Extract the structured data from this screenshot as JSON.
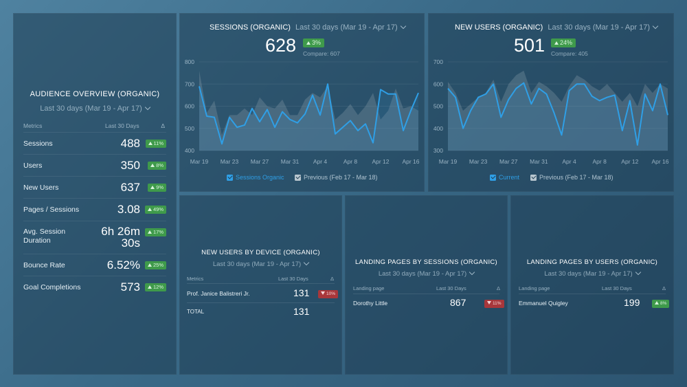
{
  "colors": {
    "series": "#2f9fe6",
    "previous": "#7d94a3",
    "positive": "#3f9a4b",
    "negative": "#a8373b"
  },
  "audience": {
    "title": "AUDIENCE OVERVIEW (ORGANIC)",
    "range": "Last 30 days (Mar 19 - Apr 17)",
    "columns": [
      "Metrics",
      "Last 30 Days",
      "Δ"
    ],
    "rows": [
      {
        "label": "Sessions",
        "value": "488",
        "delta": "11%"
      },
      {
        "label": "Users",
        "value": "350",
        "delta": "8%"
      },
      {
        "label": "New Users",
        "value": "637",
        "delta": "9%"
      },
      {
        "label": "Pages / Sessions",
        "value": "3.08",
        "delta": "49%"
      },
      {
        "label": "Avg. Session Duration",
        "value": "6h 26m 30s",
        "delta": "17%"
      },
      {
        "label": "Bounce Rate",
        "value": "6.52%",
        "delta": "25%"
      },
      {
        "label": "Goal Completions",
        "value": "573",
        "delta": "12%"
      }
    ]
  },
  "sessions": {
    "title": "SESSIONS (ORGANIC)",
    "range": "Last 30 days (Mar 19 - Apr 17)",
    "value": "628",
    "delta": "3%",
    "compare": "Compare: 607",
    "legend_current": "Sessions Organic",
    "legend_previous": "Previous (Feb 17 - Mar 18)"
  },
  "new_users": {
    "title": "NEW USERS (ORGANIC)",
    "range": "Last 30 days (Mar 19 - Apr 17)",
    "value": "501",
    "delta": "24%",
    "compare": "Compare: 405",
    "legend_current": "Current",
    "legend_previous": "Previous (Feb 17 - Mar 18)"
  },
  "chart_data": [
    {
      "type": "line",
      "x": [
        "Mar 19",
        "Mar 20",
        "Mar 21",
        "Mar 22",
        "Mar 23",
        "Mar 24",
        "Mar 25",
        "Mar 26",
        "Mar 27",
        "Mar 28",
        "Mar 29",
        "Mar 30",
        "Mar 31",
        "Apr 1",
        "Apr 2",
        "Apr 3",
        "Apr 4",
        "Apr 5",
        "Apr 6",
        "Apr 7",
        "Apr 8",
        "Apr 9",
        "Apr 10",
        "Apr 11",
        "Apr 12",
        "Apr 13",
        "Apr 14",
        "Apr 15",
        "Apr 16",
        "Apr 17"
      ],
      "xticks": [
        "Mar 19",
        "Mar 23",
        "Mar 27",
        "Mar 31",
        "Apr 4",
        "Apr 8",
        "Apr 12",
        "Apr 16"
      ],
      "yticks": [
        400,
        500,
        600,
        700,
        800
      ],
      "ylim": [
        400,
        800
      ],
      "series": [
        {
          "name": "Sessions Organic",
          "values": [
            690,
            555,
            550,
            430,
            550,
            505,
            515,
            590,
            530,
            585,
            505,
            575,
            540,
            525,
            565,
            650,
            560,
            700,
            475,
            505,
            535,
            490,
            520,
            435,
            675,
            655,
            655,
            490,
            580,
            660
          ]
        },
        {
          "name": "Previous (Feb 17 - Mar 18)",
          "values": [
            760,
            570,
            625,
            470,
            560,
            560,
            590,
            560,
            640,
            600,
            590,
            630,
            560,
            560,
            630,
            660,
            640,
            690,
            540,
            570,
            610,
            560,
            600,
            660,
            540,
            580,
            680,
            590,
            600,
            580
          ]
        }
      ]
    },
    {
      "type": "line",
      "x": [
        "Mar 19",
        "Mar 20",
        "Mar 21",
        "Mar 22",
        "Mar 23",
        "Mar 24",
        "Mar 25",
        "Mar 26",
        "Mar 27",
        "Mar 28",
        "Mar 29",
        "Mar 30",
        "Mar 31",
        "Apr 1",
        "Apr 2",
        "Apr 3",
        "Apr 4",
        "Apr 5",
        "Apr 6",
        "Apr 7",
        "Apr 8",
        "Apr 9",
        "Apr 10",
        "Apr 11",
        "Apr 12",
        "Apr 13",
        "Apr 14",
        "Apr 15",
        "Apr 16",
        "Apr 17"
      ],
      "xticks": [
        "Mar 19",
        "Mar 23",
        "Mar 27",
        "Mar 31",
        "Apr 4",
        "Apr 8",
        "Apr 12",
        "Apr 16"
      ],
      "yticks": [
        300,
        400,
        500,
        600,
        700
      ],
      "ylim": [
        300,
        700
      ],
      "series": [
        {
          "name": "Current",
          "values": [
            580,
            540,
            400,
            480,
            540,
            555,
            600,
            450,
            530,
            580,
            605,
            510,
            580,
            555,
            470,
            370,
            570,
            600,
            600,
            545,
            525,
            540,
            550,
            390,
            525,
            325,
            555,
            480,
            600,
            460
          ]
        },
        {
          "name": "Previous (Feb 17 - Mar 18)",
          "values": [
            610,
            560,
            480,
            510,
            540,
            560,
            620,
            520,
            600,
            640,
            660,
            560,
            610,
            590,
            560,
            520,
            590,
            640,
            620,
            590,
            570,
            600,
            560,
            520,
            560,
            500,
            600,
            560,
            600,
            580
          ]
        }
      ]
    }
  ],
  "device": {
    "title": "NEW USERS BY DEVICE (ORGANIC)",
    "range": "Last 30 days (Mar 19 - Apr 17)",
    "columns": [
      "Metrics",
      "Last 30 Days",
      "Δ"
    ],
    "row_label": "Prof. Janice Balistreri Jr.",
    "row_value": "131",
    "row_delta": "10%",
    "total_label": "TOTAL",
    "total_value": "131"
  },
  "landing_sessions": {
    "title": "LANDING PAGES BY SESSIONS (ORGANIC)",
    "range": "Last 30 days (Mar 19 - Apr 17)",
    "columns": [
      "Landing page",
      "Last 30 Days",
      "Δ"
    ],
    "row_label": "Dorothy Little",
    "row_value": "867",
    "row_delta": "11%"
  },
  "landing_users": {
    "title": "LANDING PAGES BY USERS (ORGANIC)",
    "range": "Last 30 days (Mar 19 - Apr 17)",
    "columns": [
      "Landing page",
      "Last 30 Days",
      "Δ"
    ],
    "row_label": "Emmanuel Quigley",
    "row_value": "199",
    "row_delta": "8%"
  }
}
